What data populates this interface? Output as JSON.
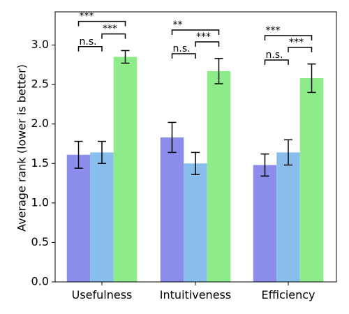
{
  "chart_data": {
    "type": "bar",
    "title": "",
    "xlabel": "",
    "ylabel": "Average rank (lower is better)",
    "ylim": [
      0,
      3.42
    ],
    "yticks": [
      0.0,
      0.5,
      1.0,
      1.5,
      2.0,
      2.5,
      3.0
    ],
    "ytick_labels": [
      "0.0",
      "0.5",
      "1.0",
      "1.5",
      "2.0",
      "2.5",
      "3.0"
    ],
    "grid": false,
    "legend": null,
    "categories": [
      "Usefulness",
      "Intuitiveness",
      "Efficiency"
    ],
    "series": [
      {
        "color": "#8c8ceb",
        "values": [
          1.61,
          1.83,
          1.48
        ],
        "error": [
          0.17,
          0.19,
          0.14
        ]
      },
      {
        "color": "#89bdeb",
        "values": [
          1.64,
          1.5,
          1.64
        ],
        "error": [
          0.14,
          0.14,
          0.16
        ]
      },
      {
        "color": "#8deb8a",
        "values": [
          2.85,
          2.67,
          2.58
        ],
        "error": [
          0.08,
          0.16,
          0.18
        ]
      }
    ],
    "significance": [
      {
        "category": 0,
        "from": 0,
        "to": 1,
        "label": "n.s.",
        "y": 2.98
      },
      {
        "category": 0,
        "from": 1,
        "to": 2,
        "label": "***",
        "y": 3.14
      },
      {
        "category": 0,
        "from": 0,
        "to": 2,
        "label": "***",
        "y": 3.3
      },
      {
        "category": 1,
        "from": 0,
        "to": 1,
        "label": "n.s.",
        "y": 2.89
      },
      {
        "category": 1,
        "from": 1,
        "to": 2,
        "label": "***",
        "y": 3.04
      },
      {
        "category": 1,
        "from": 0,
        "to": 2,
        "label": "**",
        "y": 3.19
      },
      {
        "category": 2,
        "from": 0,
        "to": 1,
        "label": "n.s.",
        "y": 2.81
      },
      {
        "category": 2,
        "from": 1,
        "to": 2,
        "label": "***",
        "y": 2.97
      },
      {
        "category": 2,
        "from": 0,
        "to": 2,
        "label": "***",
        "y": 3.12
      }
    ]
  }
}
